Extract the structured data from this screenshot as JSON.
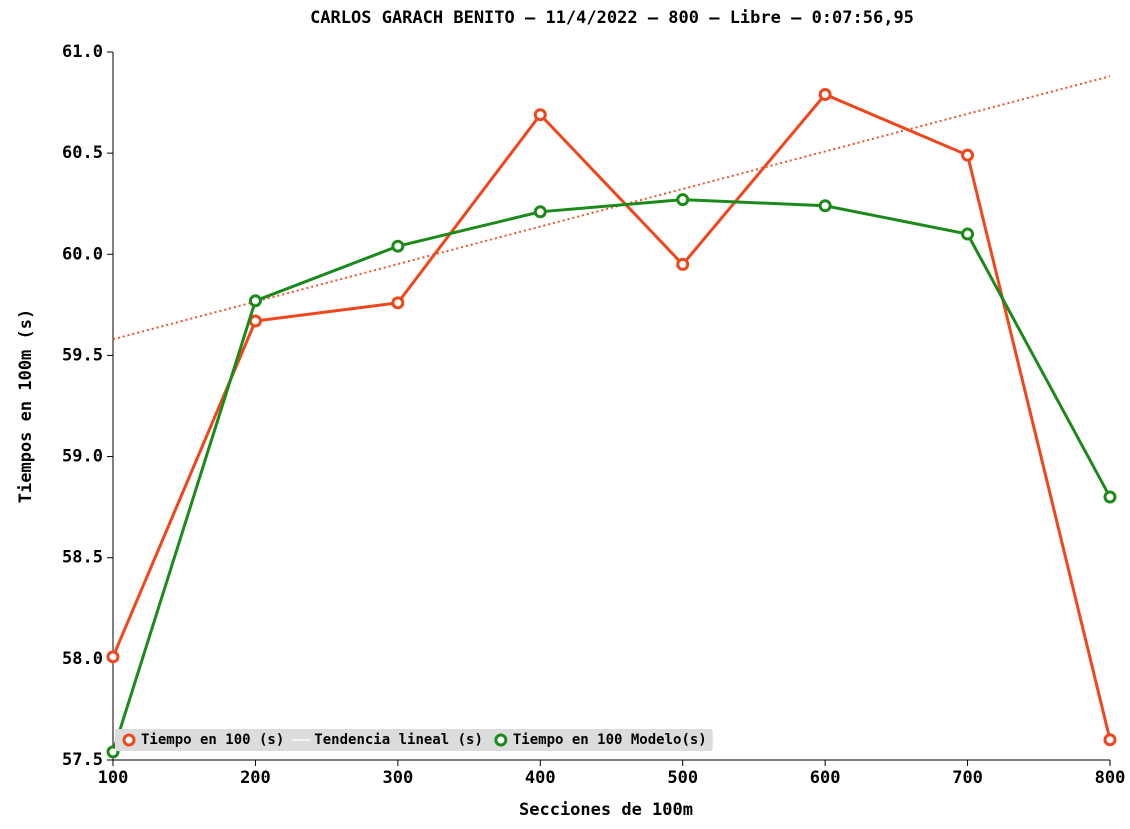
{
  "chart_data": {
    "type": "line",
    "title": "CARLOS GARACH BENITO – 11/4/2022 – 800 – Libre – 0:07:56,95",
    "x_label": "Secciones de 100m",
    "y_label": "Tiempos en 100m (s)",
    "x": [
      100,
      200,
      300,
      400,
      500,
      600,
      700,
      800
    ],
    "xlim": [
      100,
      800
    ],
    "xticks": [
      100,
      200,
      300,
      400,
      500,
      600,
      700,
      800
    ],
    "ylim": [
      57.5,
      61.0
    ],
    "yticks": [
      {
        "value": 57.5,
        "label": "57.5"
      },
      {
        "value": 58.0,
        "label": "58.0"
      },
      {
        "value": 58.5,
        "label": "58.5"
      },
      {
        "value": 59.0,
        "label": "59.0"
      },
      {
        "value": 59.5,
        "label": "59.5"
      },
      {
        "value": 60.0,
        "label": "60.0"
      },
      {
        "value": 60.5,
        "label": "60.5"
      },
      {
        "value": 61.0,
        "label": "61.0"
      }
    ],
    "legend": "lower left",
    "series": [
      {
        "name": "Tiempo en 100 (s)",
        "color": "#f0461c",
        "marker": "circle",
        "linestyle": "solid",
        "values": [
          58.01,
          59.67,
          59.76,
          60.69,
          59.95,
          60.79,
          60.49,
          57.6
        ]
      },
      {
        "name": "Tendencia lineal (s)",
        "color": "#e8542c",
        "marker": null,
        "linestyle": "dotted",
        "x": [
          100,
          800
        ],
        "values": [
          59.58,
          60.88
        ]
      },
      {
        "name": "Tiempo en 100 Modelo(s)",
        "color": "#1b8a1b",
        "marker": "circle",
        "linestyle": "solid",
        "values": [
          57.54,
          59.77,
          60.04,
          60.21,
          60.27,
          60.24,
          60.1,
          58.8
        ]
      }
    ]
  }
}
